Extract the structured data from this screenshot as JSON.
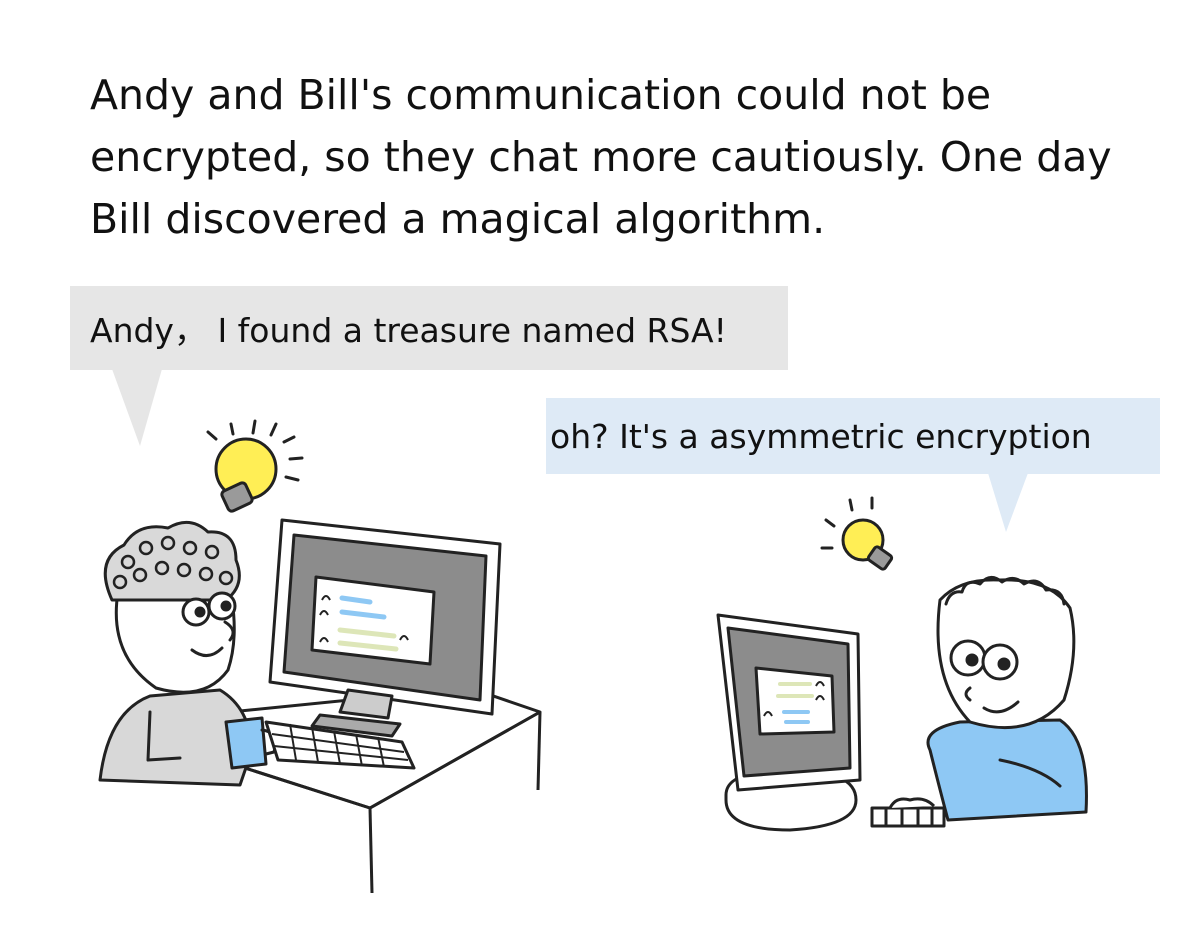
{
  "caption": {
    "lines": [
      "Andy and Bill's communication could not be",
      "encrypted, so they chat more cautiously. One day",
      "Bill discovered a magical algorithm."
    ]
  },
  "bubbles": {
    "andy": "Andy， I found a treasure named RSA!",
    "bill": "oh?  It's a asymmetric encryption"
  },
  "colors": {
    "andy_bubble": "#e6e6e6",
    "bill_bubble": "#deeaf6",
    "bulb": "#ffee55",
    "bill_shirt": "#8ec8f4",
    "andy_shirt": "#d8d8d8",
    "screen": "#8c8c8c"
  }
}
